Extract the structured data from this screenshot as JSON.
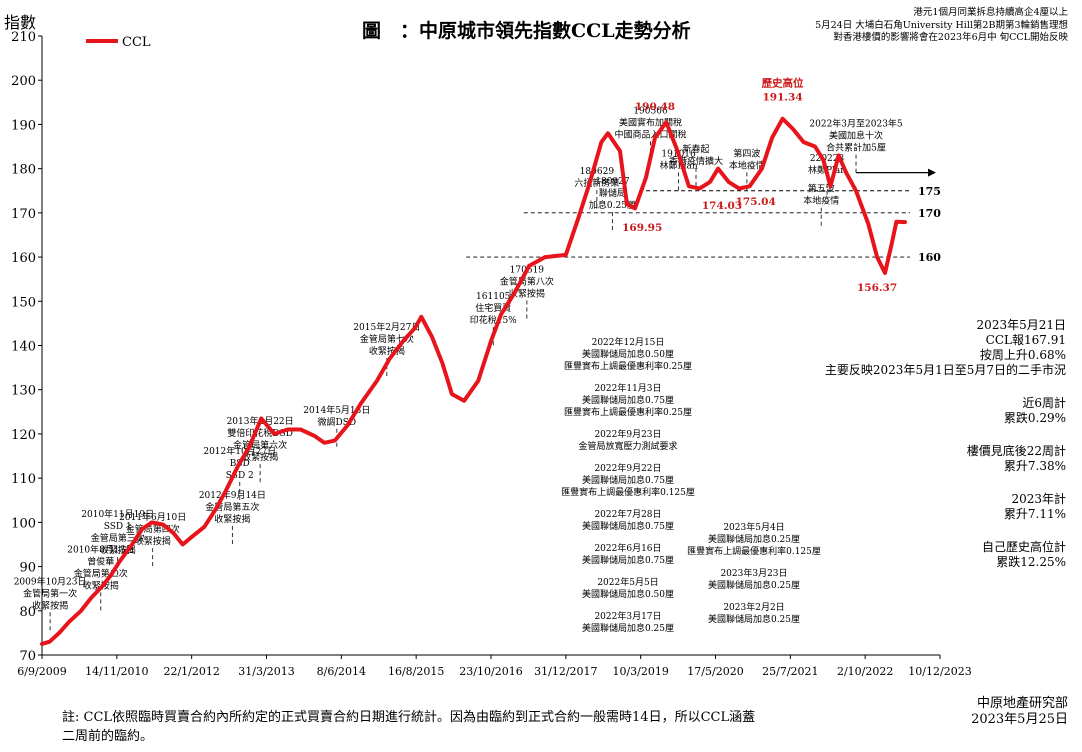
{
  "title": "圖　：中原城市領先指數CCL走勢分析",
  "top_notes": [
    "港元1個月同業拆息持續高企4厘以上",
    "5月24日 大埔白石角University Hill第2B期第3輪銷售理想",
    "對香港樓價的影響將會在2023年6月中 旬CCL開始反映"
  ],
  "side_notes": [
    {
      "lines": [
        "2023年5月21日",
        "CCL報167.91",
        "按周上升0.68%",
        "主要反映2023年5月1日至5月7日的二手市況"
      ]
    },
    {
      "lines": [
        "近6周計",
        "累跌0.29%"
      ]
    },
    {
      "lines": [
        "樓價見底後22周計",
        "累升7.38%"
      ]
    },
    {
      "lines": [
        "2023年計",
        "累升7.11%"
      ]
    },
    {
      "lines": [
        "自己歷史高位計",
        "累跌12.25%"
      ]
    }
  ],
  "footnote": "註: CCL依照臨時買賣合約內所約定的正式買賣合約日期進行統計。因為由臨約到正式合約一般需時14日，所以CCL涵蓋二周前的臨約。",
  "credit": [
    "中原地產研究部",
    "2023年5月25日"
  ],
  "colors": {
    "series": "#e8141c",
    "value_label": "#cc1a1a",
    "grid": "#000000"
  },
  "chart_data": {
    "type": "line",
    "title": "圖　：中原城市領先指數CCL走勢分析",
    "ylabel": "指數",
    "xlabel": "",
    "ylim": [
      70,
      210
    ],
    "yticks": [
      70,
      80,
      90,
      100,
      110,
      120,
      130,
      140,
      150,
      160,
      170,
      180,
      190,
      200,
      210
    ],
    "x_range": [
      "2009-09-06",
      "2023-12-10"
    ],
    "xticks": [
      "6/9/2009",
      "14/11/2010",
      "22/1/2012",
      "31/3/2013",
      "8/6/2014",
      "16/8/2015",
      "23/10/2016",
      "31/12/2017",
      "10/3/2019",
      "17/5/2020",
      "25/7/2021",
      "2/10/2022",
      "10/12/2023"
    ],
    "legend": {
      "position": "top-left",
      "entries": [
        "CCL"
      ]
    },
    "grid": false,
    "series": [
      {
        "name": "CCL",
        "x": [
          "2009-09-06",
          "2009-10-20",
          "2009-12-15",
          "2010-02-10",
          "2010-04-20",
          "2010-06-20",
          "2010-08-20",
          "2010-10-10",
          "2010-11-28",
          "2011-02-10",
          "2011-04-10",
          "2011-06-05",
          "2011-08-10",
          "2011-10-10",
          "2011-12-01",
          "2012-02-01",
          "2012-04-05",
          "2012-06-10",
          "2012-08-05",
          "2012-10-20",
          "2012-12-20",
          "2013-03-01",
          "2013-05-15",
          "2013-08-01",
          "2013-10-15",
          "2014-01-05",
          "2014-03-01",
          "2014-05-01",
          "2014-07-15",
          "2014-10-01",
          "2014-12-31",
          "2015-03-15",
          "2015-06-01",
          "2015-08-10",
          "2015-09-15",
          "2015-11-15",
          "2016-01-15",
          "2016-03-10",
          "2016-05-20",
          "2016-08-10",
          "2016-10-23",
          "2016-12-20",
          "2017-03-10",
          "2017-06-01",
          "2017-09-01",
          "2017-12-31",
          "2018-03-15",
          "2018-05-20",
          "2018-07-25",
          "2018-09-01",
          "2018-11-10",
          "2018-12-20",
          "2019-02-05",
          "2019-04-10",
          "2019-06-01",
          "2019-08-05",
          "2019-10-10",
          "2019-12-15",
          "2020-02-15",
          "2020-04-15",
          "2020-06-01",
          "2020-08-01",
          "2020-10-01",
          "2020-12-01",
          "2021-02-10",
          "2021-04-10",
          "2021-06-10",
          "2021-08-09",
          "2021-10-10",
          "2021-12-15",
          "2022-02-01",
          "2022-03-15",
          "2022-05-01",
          "2022-06-15",
          "2022-08-10",
          "2022-10-20",
          "2022-12-10",
          "2023-01-25",
          "2023-03-05",
          "2023-04-01",
          "2023-05-21"
        ],
        "values": [
          72.5,
          73,
          75,
          77.5,
          80,
          83,
          85.5,
          88,
          91,
          95,
          98.5,
          100,
          99.5,
          97.5,
          95,
          97,
          99,
          103,
          107,
          113,
          117,
          123.5,
          120,
          121,
          121,
          119.5,
          118,
          118.5,
          122,
          127,
          132,
          137,
          141,
          144,
          146.5,
          142,
          136,
          129,
          127.5,
          132,
          141,
          147,
          152,
          158,
          160,
          160.5,
          169,
          177,
          186,
          188,
          184,
          172,
          171,
          178,
          187,
          190.5,
          184,
          176,
          175.5,
          177,
          180,
          177,
          175.5,
          176,
          180,
          187,
          191.3,
          189,
          186,
          185,
          182,
          176,
          183,
          179,
          175,
          167.5,
          160,
          156.4,
          163,
          168,
          167.9
        ]
      }
    ],
    "reference_lines": [
      175,
      170,
      160
    ],
    "value_labels": [
      {
        "text": "191.34",
        "x": "2021-06-10",
        "y": 191.3
      },
      {
        "text": "190.48",
        "x": "2019-06-01",
        "y": 190.5
      },
      {
        "text": "169.95",
        "x": "2019-01-20",
        "y": 170
      },
      {
        "text": "174.03",
        "x": "2020-04-15",
        "y": 174
      },
      {
        "text": "175.04",
        "x": "2021-01-05",
        "y": 175
      },
      {
        "text": "156.37",
        "x": "2022-12-10",
        "y": 156.4
      },
      {
        "text": "歷史高位",
        "x": "2021-06-10",
        "y": 191.3
      }
    ],
    "annotations": [
      {
        "lines": [
          "2009年10月23日",
          "金管局第一次",
          "收緊按揭"
        ],
        "x": "2009-10-23",
        "y": 76.5
      },
      {
        "lines": [
          "2010年8月13日",
          "曾俊華",
          "金管局第二次",
          "收緊按揭"
        ],
        "x": "2010-08-13",
        "y": 81
      },
      {
        "lines": [
          "2010年11月19日",
          "SSD 1",
          "金管局第三次",
          "收緊按揭"
        ],
        "x": "2010-11-19",
        "y": 89
      },
      {
        "lines": [
          "2011年6月10日",
          "金管局第四次",
          "收緊按揭"
        ],
        "x": "2011-06-10",
        "y": 91
      },
      {
        "lines": [
          "2012年9月14日",
          "金管局第五次",
          "收緊按揭"
        ],
        "x": "2012-09-14",
        "y": 96
      },
      {
        "lines": [
          "2012年10月27日",
          "BSD",
          "SSD 2"
        ],
        "x": "2012-10-27",
        "y": 106
      },
      {
        "lines": [
          "2013年2月22日",
          "雙倍印花稅DSD",
          "金管局第六次",
          "收緊按揭"
        ],
        "x": "2013-02-22",
        "y": 110
      },
      {
        "lines": [
          "2014年5月13日",
          "微調DSD"
        ],
        "x": "2014-05-13",
        "y": 118
      },
      {
        "lines": [
          "2015年2月27日",
          "金管局第七次",
          "收緊按揭"
        ],
        "x": "2015-02-27",
        "y": 134
      },
      {
        "lines": [
          "161105",
          "住宅買賣",
          "印花稅15%"
        ],
        "x": "2016-11-05",
        "y": 141
      },
      {
        "lines": [
          "170519",
          "金管局第八次",
          "收緊按揭"
        ],
        "x": "2017-05-19",
        "y": 147
      },
      {
        "lines": [
          "180629",
          "六招新房策"
        ],
        "x": "2018-06-29",
        "y": 172
      },
      {
        "lines": [
          "190506",
          "美國實布加關稅",
          "中國商品入口關稅"
        ],
        "x": "2019-05-06",
        "y": 183
      },
      {
        "lines": [
          "180927",
          "聯儲局",
          "加息0.25厘"
        ],
        "x": "2018-09-27",
        "y": 167
      },
      {
        "lines": [
          "191016",
          "林鄭Plan"
        ],
        "x": "2019-10-16",
        "y": 176
      },
      {
        "lines": [
          "新春起",
          "香港疫情擴大"
        ],
        "x": "2020-01-25",
        "y": 177
      },
      {
        "lines": [
          "第四波",
          "本地疫情"
        ],
        "x": "2020-11-15",
        "y": 176
      },
      {
        "lines": [
          "220223",
          "林鄭Plan"
        ],
        "x": "2022-02-23",
        "y": 175
      },
      {
        "lines": [
          "第五波",
          "本地疫情"
        ],
        "x": "2022-01-20",
        "y": 168
      },
      {
        "lines": [
          "2022年3月至2023年5",
          "美國加息十次",
          "合共累計加5厘"
        ],
        "x": "2022-08-10",
        "y": 180
      }
    ],
    "rate_notes": [
      {
        "lines": [
          "2022年12月15日",
          "美國聯儲局加息0.50厘",
          "匯豐實布上調最優惠利率0.25厘"
        ]
      },
      {
        "lines": [
          "2022年11月3日",
          "美國聯儲局加息0.75厘",
          "匯豐實布上調最優惠利率0.25厘"
        ]
      },
      {
        "lines": [
          "2022年9月23日",
          "金管局放寬壓力測試要求"
        ]
      },
      {
        "lines": [
          "2022年9月22日",
          "美國聯儲局加息0.75厘",
          "匯豐實布上調最優惠利率0.125厘"
        ]
      },
      {
        "lines": [
          "2022年7月28日",
          "美國聯儲局加息0.75厘"
        ]
      },
      {
        "lines": [
          "2022年6月16日",
          "美國聯儲局加息0.75厘"
        ]
      },
      {
        "lines": [
          "2022年5月5日",
          "美國聯儲局加息0.50厘"
        ]
      },
      {
        "lines": [
          "2022年3月17日",
          "美國聯儲局加息0.25厘"
        ]
      },
      {
        "lines": [
          "2023年5月4日",
          "美國聯儲局加息0.25厘",
          "匯豐實布上調最優惠利率0.125厘"
        ]
      },
      {
        "lines": [
          "2023年3月23日",
          "美國聯儲局加息0.25厘"
        ]
      },
      {
        "lines": [
          "2023年2月2日",
          "美國聯儲局加息0.25厘"
        ]
      }
    ]
  }
}
